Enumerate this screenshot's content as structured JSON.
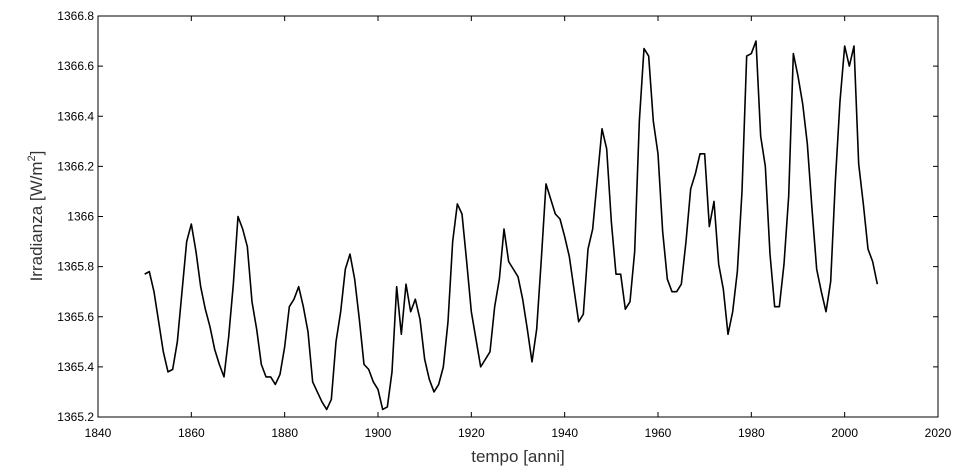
{
  "chart_data": {
    "type": "line",
    "title": "",
    "xlabel": "tempo [anni]",
    "ylabel": "Irradianza [W/m²]",
    "ylabel_base": "Irradianza [W/m",
    "ylabel_sup": "2",
    "ylabel_end": "]",
    "xlim": [
      1840,
      2020
    ],
    "ylim": [
      1365.2,
      1366.8
    ],
    "grid": false,
    "legend": "none",
    "line_color": "#000000",
    "x_ticks": [
      "1840",
      "1860",
      "1880",
      "1900",
      "1920",
      "1940",
      "1960",
      "1980",
      "2000",
      "2020"
    ],
    "y_ticks": [
      "1365.2",
      "1365.4",
      "1365.6",
      "1365.8",
      "1366",
      "1366.2",
      "1366.4",
      "1366.6",
      "1366.8"
    ],
    "x": [
      1850,
      1851,
      1852,
      1853,
      1854,
      1855,
      1856,
      1857,
      1858,
      1859,
      1860,
      1861,
      1862,
      1863,
      1864,
      1865,
      1866,
      1867,
      1868,
      1869,
      1870,
      1871,
      1872,
      1873,
      1874,
      1875,
      1876,
      1877,
      1878,
      1879,
      1880,
      1881,
      1882,
      1883,
      1884,
      1885,
      1886,
      1887,
      1888,
      1889,
      1890,
      1891,
      1892,
      1893,
      1894,
      1895,
      1896,
      1897,
      1898,
      1899,
      1900,
      1901,
      1902,
      1903,
      1904,
      1905,
      1906,
      1907,
      1908,
      1909,
      1910,
      1911,
      1912,
      1913,
      1914,
      1915,
      1916,
      1917,
      1918,
      1919,
      1920,
      1921,
      1922,
      1923,
      1924,
      1925,
      1926,
      1927,
      1928,
      1929,
      1930,
      1931,
      1932,
      1933,
      1934,
      1935,
      1936,
      1937,
      1938,
      1939,
      1940,
      1941,
      1942,
      1943,
      1944,
      1945,
      1946,
      1947,
      1948,
      1949,
      1950,
      1951,
      1952,
      1953,
      1954,
      1955,
      1956,
      1957,
      1958,
      1959,
      1960,
      1961,
      1962,
      1963,
      1964,
      1965,
      1966,
      1967,
      1968,
      1969,
      1970,
      1971,
      1972,
      1973,
      1974,
      1975,
      1976,
      1977,
      1978,
      1979,
      1980,
      1981,
      1982,
      1983,
      1984,
      1985,
      1986,
      1987,
      1988,
      1989,
      1990,
      1991,
      1992,
      1993,
      1994,
      1995,
      1996,
      1997,
      1998,
      1999,
      2000,
      2001,
      2002,
      2003,
      2004,
      2005,
      2006,
      2007
    ],
    "y": [
      1365.77,
      1365.78,
      1365.7,
      1365.58,
      1365.46,
      1365.38,
      1365.39,
      1365.5,
      1365.7,
      1365.9,
      1365.97,
      1365.86,
      1365.72,
      1365.63,
      1365.56,
      1365.47,
      1365.41,
      1365.36,
      1365.52,
      1365.73,
      1366.0,
      1365.95,
      1365.88,
      1365.66,
      1365.55,
      1365.41,
      1365.36,
      1365.36,
      1365.33,
      1365.37,
      1365.48,
      1365.64,
      1365.67,
      1365.72,
      1365.64,
      1365.54,
      1365.34,
      1365.3,
      1365.26,
      1365.23,
      1365.27,
      1365.5,
      1365.62,
      1365.79,
      1365.85,
      1365.75,
      1365.59,
      1365.41,
      1365.39,
      1365.34,
      1365.31,
      1365.23,
      1365.24,
      1365.38,
      1365.72,
      1365.53,
      1365.73,
      1365.62,
      1365.67,
      1365.59,
      1365.43,
      1365.35,
      1365.3,
      1365.33,
      1365.4,
      1365.58,
      1365.9,
      1366.05,
      1366.01,
      1365.82,
      1365.62,
      1365.51,
      1365.4,
      1365.43,
      1365.46,
      1365.64,
      1365.75,
      1365.95,
      1365.82,
      1365.79,
      1365.76,
      1365.67,
      1365.55,
      1365.42,
      1365.55,
      1365.83,
      1366.13,
      1366.07,
      1366.01,
      1365.99,
      1365.92,
      1365.84,
      1365.71,
      1365.58,
      1365.61,
      1365.87,
      1365.95,
      1366.15,
      1366.35,
      1366.27,
      1365.98,
      1365.77,
      1365.77,
      1365.63,
      1365.66,
      1365.86,
      1366.38,
      1366.67,
      1366.64,
      1366.38,
      1366.25,
      1365.94,
      1365.75,
      1365.7,
      1365.7,
      1365.73,
      1365.9,
      1366.11,
      1366.17,
      1366.25,
      1366.25,
      1365.96,
      1366.06,
      1365.81,
      1365.71,
      1365.53,
      1365.62,
      1365.78,
      1366.1,
      1366.64,
      1366.65,
      1366.7,
      1366.32,
      1366.2,
      1365.85,
      1365.64,
      1365.64,
      1365.81,
      1366.08,
      1366.65,
      1366.56,
      1366.45,
      1366.29,
      1366.03,
      1365.79,
      1365.7,
      1365.62,
      1365.74,
      1366.14,
      1366.46,
      1366.68,
      1366.6,
      1366.68,
      1366.21,
      1366.05,
      1365.87,
      1365.82,
      1365.73
    ]
  }
}
